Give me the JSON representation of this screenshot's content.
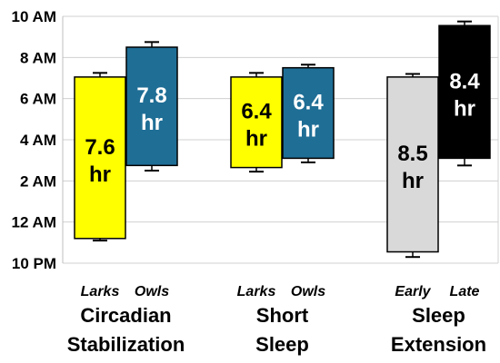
{
  "chart_data": {
    "type": "floating-bar",
    "title": "",
    "xlabel": "",
    "ylabel": "",
    "y_axis": {
      "unit": "hours after 10 PM",
      "ylim": [
        0,
        12
      ],
      "ticks": [
        {
          "value": 0,
          "label": "10 PM"
        },
        {
          "value": 2,
          "label": "12 AM"
        },
        {
          "value": 4,
          "label": "2 AM"
        },
        {
          "value": 6,
          "label": "4 AM"
        },
        {
          "value": 8,
          "label": "6 AM"
        },
        {
          "value": 10,
          "label": "8 AM"
        },
        {
          "value": 12,
          "label": "10 AM"
        }
      ]
    },
    "grid": true,
    "groups": [
      {
        "label_lines": [
          "Circadian",
          "Stabilization"
        ],
        "bars": [
          {
            "category": "Larks",
            "start": 1.2,
            "end": 9.05,
            "err_low": 1.1,
            "err_high": 9.25,
            "label_value": "7.6",
            "label_unit": "hr",
            "color": "#FFFF00",
            "label_color": "#000000"
          },
          {
            "category": "Owls",
            "start": 4.75,
            "end": 10.5,
            "err_low": 4.5,
            "err_high": 10.75,
            "label_value": "7.8",
            "label_unit": "hr",
            "color": "#1F6E96",
            "label_color": "#FFFFFF"
          }
        ]
      },
      {
        "label_lines": [
          "Short",
          "Sleep"
        ],
        "bars": [
          {
            "category": "Larks",
            "start": 4.65,
            "end": 9.05,
            "err_low": 4.45,
            "err_high": 9.25,
            "label_value": "6.4",
            "label_unit": "hr",
            "color": "#FFFF00",
            "label_color": "#000000"
          },
          {
            "category": "Owls",
            "start": 5.1,
            "end": 9.5,
            "err_low": 4.9,
            "err_high": 9.65,
            "label_value": "6.4",
            "label_unit": "hr",
            "color": "#1F6E96",
            "label_color": "#FFFFFF"
          }
        ]
      },
      {
        "label_lines": [
          "Sleep",
          "Extension"
        ],
        "bars": [
          {
            "category": "Early",
            "start": 0.55,
            "end": 9.05,
            "err_low": 0.3,
            "err_high": 9.2,
            "label_value": "8.5",
            "label_unit": "hr",
            "color": "#D9D9D9",
            "label_color": "#000000"
          },
          {
            "category": "Late",
            "start": 5.1,
            "end": 11.55,
            "err_low": 4.75,
            "err_high": 11.75,
            "label_value": "8.4",
            "label_unit": "hr",
            "color": "#000000",
            "label_color": "#FFFFFF"
          }
        ]
      }
    ]
  }
}
